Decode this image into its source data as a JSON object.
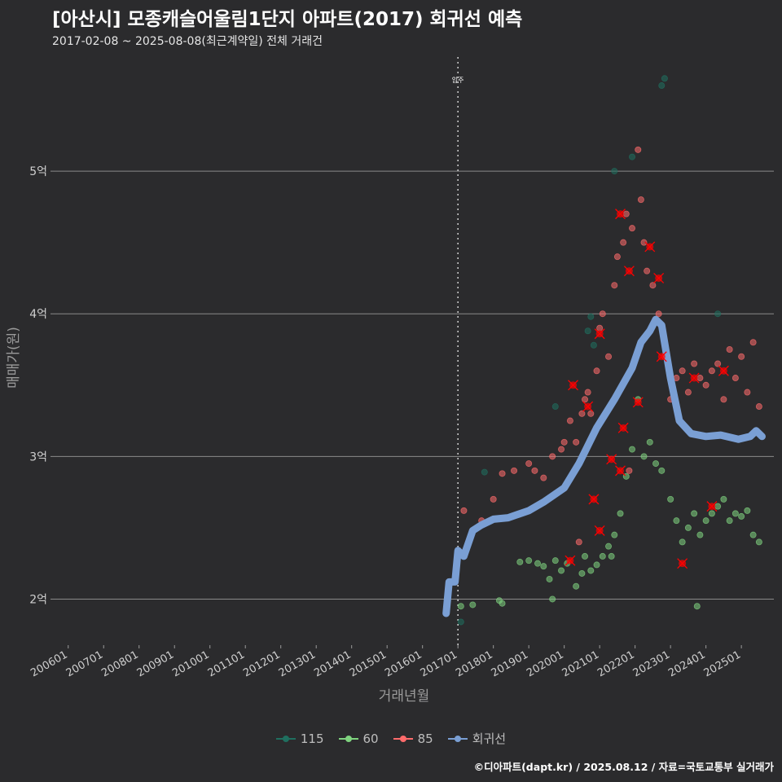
{
  "header": {
    "title": "[아산시] 모종캐슬어울림1단지 아파트(2017) 회귀선 예측",
    "subtitle": "2017-02-08 ~ 2025-08-08(최근계약일) 전체 거래건"
  },
  "caption": "©디아파트(dapt.kr) / 2025.08.12 / 자료=국토교통부 실거래가",
  "chart_data": {
    "type": "scatter",
    "title": "[아산시] 모종캐슬어울림1단지 아파트(2017) 회귀선 예측",
    "subtitle": "2017-02-08 ~ 2025-08-08(최근계약일) 전체 거래건",
    "xlabel": "거래년월",
    "ylabel": "매매가(원)",
    "x_unit": "year-month",
    "xlim": [
      "2005-07",
      "2025-12"
    ],
    "ylim": [
      1.7,
      5.8
    ],
    "x_ticks": [
      "200601",
      "200701",
      "200801",
      "200901",
      "201001",
      "201101",
      "201201",
      "201301",
      "201401",
      "201501",
      "201601",
      "201701",
      "201801",
      "201901",
      "202001",
      "202101",
      "202201",
      "202301",
      "202401",
      "202501"
    ],
    "y_ticks": [
      {
        "value": 2,
        "label": "2억"
      },
      {
        "value": 3,
        "label": "3억"
      },
      {
        "value": 4,
        "label": "4억"
      },
      {
        "value": 5,
        "label": "5억"
      }
    ],
    "grid": "horizontal major only",
    "legend_position": "bottom",
    "annotations": [
      {
        "type": "vline",
        "x": "2017-01",
        "label": "입주"
      }
    ],
    "colors": {
      "115": "#1f6f5f",
      "60": "#7fd37f",
      "85": "#ff6b6b",
      "회귀선": "#7a9fd4",
      "highlight": "#ff0000"
    },
    "series": [
      {
        "name": "115",
        "type": "scatter",
        "points": [
          [
            "2017-02",
            1.84
          ],
          [
            "2017-10",
            2.89
          ],
          [
            "2019-10",
            3.35
          ],
          [
            "2020-09",
            3.88
          ],
          [
            "2020-10",
            3.98
          ],
          [
            "2020-11",
            3.78
          ],
          [
            "2021-06",
            5.0
          ],
          [
            "2021-12",
            5.1
          ],
          [
            "2022-10",
            5.6
          ],
          [
            "2022-11",
            5.65
          ],
          [
            "2024-05",
            4.0
          ]
        ]
      },
      {
        "name": "60",
        "type": "scatter",
        "points": [
          [
            "2017-02",
            1.95
          ],
          [
            "2017-06",
            1.96
          ],
          [
            "2018-03",
            1.99
          ],
          [
            "2018-04",
            1.97
          ],
          [
            "2018-10",
            2.26
          ],
          [
            "2019-01",
            2.27
          ],
          [
            "2019-04",
            2.25
          ],
          [
            "2019-06",
            2.23
          ],
          [
            "2019-08",
            2.14
          ],
          [
            "2019-10",
            2.27
          ],
          [
            "2019-12",
            2.2
          ],
          [
            "2020-02",
            2.25
          ],
          [
            "2020-05",
            2.09
          ],
          [
            "2020-07",
            2.18
          ],
          [
            "2020-08",
            2.3
          ],
          [
            "2020-10",
            2.2
          ],
          [
            "2020-12",
            2.24
          ],
          [
            "2021-02",
            2.3
          ],
          [
            "2021-04",
            2.37
          ],
          [
            "2021-06",
            2.45
          ],
          [
            "2021-08",
            2.6
          ],
          [
            "2021-10",
            2.86
          ],
          [
            "2021-12",
            3.05
          ],
          [
            "2022-02",
            3.4
          ],
          [
            "2022-04",
            3.0
          ],
          [
            "2022-06",
            3.1
          ],
          [
            "2022-08",
            2.95
          ],
          [
            "2022-10",
            2.9
          ],
          [
            "2023-01",
            2.7
          ],
          [
            "2023-03",
            2.55
          ],
          [
            "2023-05",
            2.4
          ],
          [
            "2023-07",
            2.5
          ],
          [
            "2023-09",
            2.6
          ],
          [
            "2023-11",
            2.45
          ],
          [
            "2024-01",
            2.55
          ],
          [
            "2024-03",
            2.6
          ],
          [
            "2024-05",
            2.65
          ],
          [
            "2024-07",
            2.7
          ],
          [
            "2024-09",
            2.55
          ],
          [
            "2024-11",
            2.6
          ],
          [
            "2025-01",
            2.58
          ],
          [
            "2025-03",
            2.62
          ],
          [
            "2025-05",
            2.45
          ],
          [
            "2025-07",
            2.4
          ],
          [
            "2023-10",
            1.95
          ],
          [
            "2021-05",
            2.3
          ],
          [
            "2019-09",
            2.0
          ]
        ]
      },
      {
        "name": "85",
        "type": "scatter",
        "points": [
          [
            "2017-03",
            2.62
          ],
          [
            "2017-09",
            2.55
          ],
          [
            "2018-01",
            2.7
          ],
          [
            "2018-04",
            2.88
          ],
          [
            "2018-08",
            2.9
          ],
          [
            "2019-01",
            2.95
          ],
          [
            "2019-03",
            2.9
          ],
          [
            "2019-06",
            2.85
          ],
          [
            "2019-09",
            3.0
          ],
          [
            "2019-12",
            3.05
          ],
          [
            "2020-01",
            3.1
          ],
          [
            "2020-03",
            3.25
          ],
          [
            "2020-05",
            3.1
          ],
          [
            "2020-07",
            3.3
          ],
          [
            "2020-08",
            3.4
          ],
          [
            "2020-09",
            3.45
          ],
          [
            "2020-10",
            3.3
          ],
          [
            "2020-12",
            3.6
          ],
          [
            "2021-01",
            3.9
          ],
          [
            "2021-02",
            4.0
          ],
          [
            "2021-04",
            3.7
          ],
          [
            "2021-06",
            4.2
          ],
          [
            "2021-07",
            4.4
          ],
          [
            "2021-09",
            4.5
          ],
          [
            "2021-10",
            4.7
          ],
          [
            "2021-12",
            4.6
          ],
          [
            "2022-02",
            5.15
          ],
          [
            "2022-03",
            4.8
          ],
          [
            "2022-04",
            4.5
          ],
          [
            "2022-05",
            4.3
          ],
          [
            "2022-07",
            4.2
          ],
          [
            "2022-09",
            4.0
          ],
          [
            "2022-11",
            3.7
          ],
          [
            "2023-01",
            3.4
          ],
          [
            "2023-03",
            3.55
          ],
          [
            "2023-05",
            3.6
          ],
          [
            "2023-07",
            3.45
          ],
          [
            "2023-09",
            3.65
          ],
          [
            "2023-11",
            3.55
          ],
          [
            "2024-01",
            3.5
          ],
          [
            "2024-03",
            3.6
          ],
          [
            "2024-05",
            3.65
          ],
          [
            "2024-07",
            3.4
          ],
          [
            "2024-09",
            3.75
          ],
          [
            "2024-11",
            3.55
          ],
          [
            "2025-01",
            3.7
          ],
          [
            "2025-03",
            3.45
          ],
          [
            "2025-05",
            3.8
          ],
          [
            "2025-07",
            3.35
          ],
          [
            "2021-11",
            2.9
          ],
          [
            "2020-06",
            2.4
          ]
        ]
      },
      {
        "name": "회귀선",
        "type": "line",
        "points": [
          [
            "2016-09",
            1.9
          ],
          [
            "2016-10",
            2.12
          ],
          [
            "2016-12",
            2.12
          ],
          [
            "2017-01",
            2.34
          ],
          [
            "2017-03",
            2.3
          ],
          [
            "2017-06",
            2.48
          ],
          [
            "2017-09",
            2.52
          ],
          [
            "2018-01",
            2.56
          ],
          [
            "2018-06",
            2.57
          ],
          [
            "2019-01",
            2.62
          ],
          [
            "2019-06",
            2.68
          ],
          [
            "2020-01",
            2.78
          ],
          [
            "2020-06",
            2.95
          ],
          [
            "2020-12",
            3.2
          ],
          [
            "2021-06",
            3.4
          ],
          [
            "2021-12",
            3.62
          ],
          [
            "2022-03",
            3.8
          ],
          [
            "2022-06",
            3.88
          ],
          [
            "2022-08",
            3.96
          ],
          [
            "2022-10",
            3.92
          ],
          [
            "2023-01",
            3.55
          ],
          [
            "2023-04",
            3.25
          ],
          [
            "2023-08",
            3.16
          ],
          [
            "2024-01",
            3.14
          ],
          [
            "2024-06",
            3.15
          ],
          [
            "2024-12",
            3.12
          ],
          [
            "2025-04",
            3.14
          ],
          [
            "2025-06",
            3.18
          ],
          [
            "2025-08",
            3.14
          ]
        ]
      }
    ],
    "highlighted_points": [
      [
        "2020-04",
        3.5
      ],
      [
        "2020-09",
        3.35
      ],
      [
        "2021-01",
        3.86
      ],
      [
        "2021-08",
        4.7
      ],
      [
        "2021-11",
        4.3
      ],
      [
        "2022-06",
        4.47
      ],
      [
        "2022-09",
        4.25
      ],
      [
        "2022-10",
        3.7
      ],
      [
        "2022-02",
        3.38
      ],
      [
        "2021-09",
        3.2
      ],
      [
        "2020-11",
        2.7
      ],
      [
        "2021-01",
        2.48
      ],
      [
        "2020-03",
        2.27
      ],
      [
        "2023-05",
        2.25
      ],
      [
        "2024-03",
        2.65
      ],
      [
        "2023-09",
        3.55
      ],
      [
        "2024-07",
        3.6
      ],
      [
        "2021-05",
        2.98
      ],
      [
        "2021-08",
        2.9
      ]
    ],
    "legend": [
      "115",
      "60",
      "85",
      "회귀선"
    ]
  }
}
